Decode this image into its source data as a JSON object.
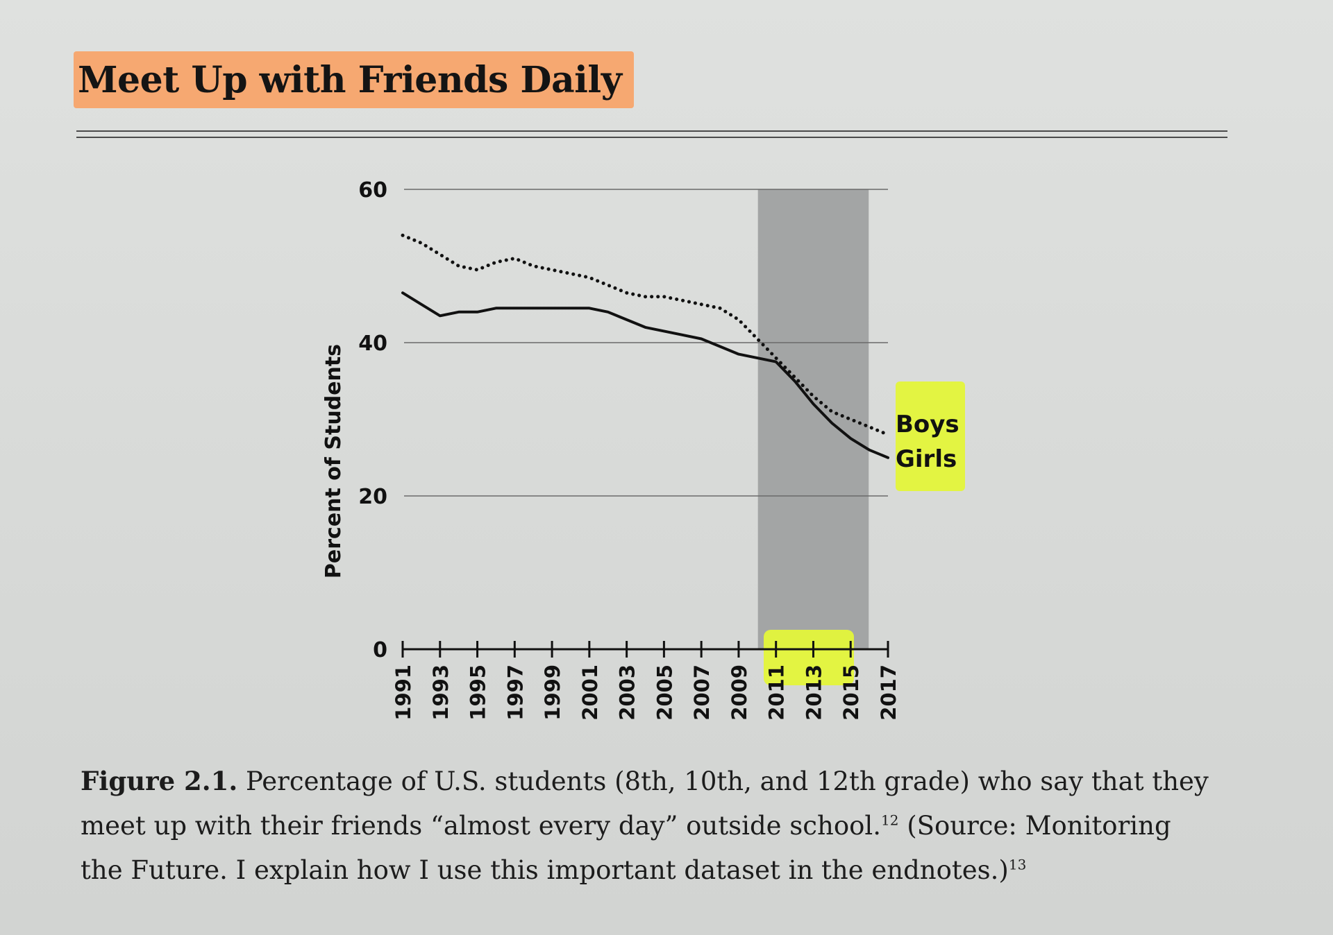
{
  "header": {
    "title": "Meet Up with Friends Daily"
  },
  "chart_data": {
    "type": "line",
    "title": "Meet Up with Friends Daily",
    "ylabel": "Percent of Students",
    "xlabel": "",
    "ylim": [
      0,
      60
    ],
    "yticks": [
      0,
      20,
      40,
      60
    ],
    "xlim": [
      1991,
      2017
    ],
    "x_tick_labels": [
      "1991",
      "1993",
      "1995",
      "1997",
      "1999",
      "2001",
      "2003",
      "2005",
      "2007",
      "2009",
      "2011",
      "2013",
      "2015",
      "2017"
    ],
    "x": [
      1991,
      1992,
      1993,
      1994,
      1995,
      1996,
      1997,
      1998,
      1999,
      2000,
      2001,
      2002,
      2003,
      2004,
      2005,
      2006,
      2007,
      2008,
      2009,
      2010,
      2011,
      2012,
      2013,
      2014,
      2015,
      2016,
      2017
    ],
    "series": [
      {
        "name": "Boys",
        "style": "dotted",
        "values": [
          54.0,
          53.0,
          51.5,
          50.0,
          49.5,
          50.5,
          51.0,
          50.0,
          49.5,
          49.0,
          48.5,
          47.5,
          46.5,
          46.0,
          46.0,
          45.5,
          45.0,
          44.5,
          43.0,
          40.5,
          38.0,
          35.5,
          33.0,
          31.0,
          30.0,
          29.0,
          28.0
        ]
      },
      {
        "name": "Girls",
        "style": "solid",
        "values": [
          46.5,
          45.0,
          43.5,
          44.0,
          44.0,
          44.5,
          44.5,
          44.5,
          44.5,
          44.5,
          44.5,
          44.0,
          43.0,
          42.0,
          41.5,
          41.0,
          40.5,
          39.5,
          38.5,
          38.0,
          37.5,
          35.0,
          32.0,
          29.5,
          27.5,
          26.0,
          25.0
        ]
      }
    ],
    "shaded_region": {
      "from": 2011,
      "to": 2015
    },
    "grid": "horizontal",
    "legend_placement": "right-end",
    "colors": {
      "line": "#111111",
      "shade": "#a3a5a5",
      "highlight": "#e4f53a",
      "grid": "#6a6a6a"
    }
  },
  "caption": {
    "label": "Figure 2.1.",
    "line1": " Percentage of U.S. students (8th, 10th, and 12th grade) who say that they",
    "line2": "meet up with their friends “almost every day” outside school.",
    "note1": "12",
    "line2b": " (Source: Monitoring",
    "line3": "the Future. I explain how I use this important dataset in the endnotes.)",
    "note2": "13"
  }
}
